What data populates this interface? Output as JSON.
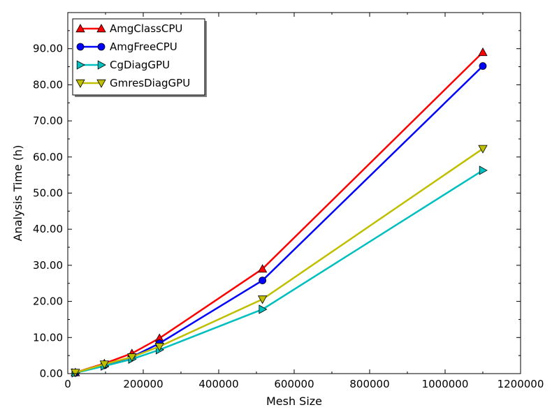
{
  "chart_data": {
    "type": "line",
    "title": "",
    "xlabel": "Mesh Size",
    "ylabel": "Analysis Time (h)",
    "xlim": [
      0,
      1200000
    ],
    "ylim": [
      0,
      100
    ],
    "xticks": [
      0,
      200000,
      400000,
      600000,
      800000,
      1000000,
      1200000
    ],
    "xtick_labels": [
      "0",
      "200000",
      "400000",
      "600000",
      "800000",
      "1000000",
      "1200000"
    ],
    "yticks": [
      0,
      10,
      20,
      30,
      40,
      50,
      60,
      70,
      80,
      90
    ],
    "ytick_labels": [
      "0.00",
      "10.00",
      "20.00",
      "30.00",
      "40.00",
      "50.00",
      "60.00",
      "70.00",
      "80.00",
      "90.00"
    ],
    "grid": false,
    "legend_position": "top-left",
    "x": [
      20000,
      97000,
      170000,
      243000,
      516000,
      1100000
    ],
    "series": [
      {
        "name": "AmgClassCPU",
        "color": "#ff0000",
        "marker": "triangle-up",
        "values": [
          0.3,
          2.8,
          5.6,
          9.8,
          29.0,
          89.0
        ]
      },
      {
        "name": "AmgFreeCPU",
        "color": "#0000ff",
        "marker": "circle",
        "values": [
          0.2,
          2.3,
          4.6,
          8.4,
          25.8,
          85.2
        ]
      },
      {
        "name": "CgDiagGPU",
        "color": "#00bfbf",
        "marker": "triangle-right",
        "values": [
          0.2,
          2.1,
          4.0,
          6.6,
          17.8,
          56.3
        ]
      },
      {
        "name": "GmresDiagGPU",
        "color": "#bfbf00",
        "marker": "triangle-down",
        "values": [
          0.3,
          2.6,
          4.6,
          7.5,
          20.6,
          62.3
        ]
      }
    ]
  }
}
